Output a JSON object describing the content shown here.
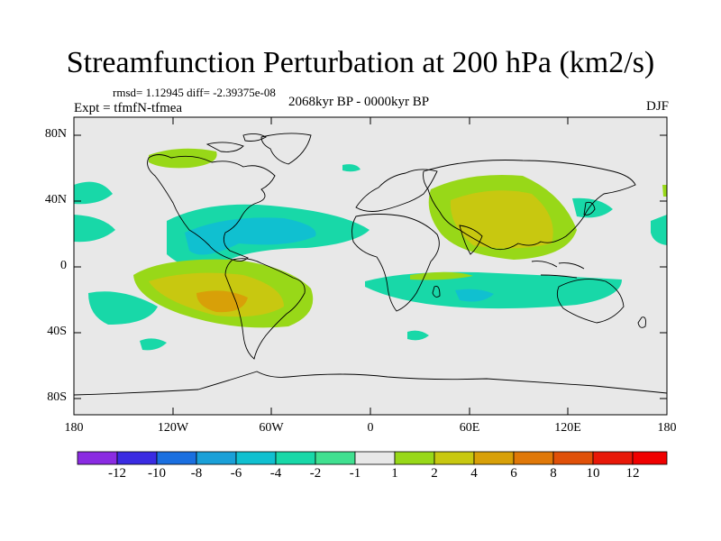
{
  "title": "Streamfunction Perturbation at 200 hPa (km2/s)",
  "stats_line": "rmsd= 1.12945 diff= -2.39375e-08",
  "experiment": "Expt = tfmfN-tfmea",
  "period": "2068kyr BP - 0000kyr BP",
  "season": "DJF",
  "axes": {
    "lat_labels": [
      "80N",
      "40N",
      "0",
      "40S",
      "80S"
    ],
    "lon_labels": [
      "180",
      "120W",
      "60W",
      "0",
      "60E",
      "120E",
      "180"
    ]
  },
  "colorbar": {
    "labels": [
      "-12",
      "-10",
      "-8",
      "-6",
      "-4",
      "-2",
      "-1",
      "1",
      "2",
      "4",
      "6",
      "8",
      "10",
      "12"
    ],
    "colors": [
      "#8a2be2",
      "#3a2be2",
      "#1a6fe0",
      "#1aa0d8",
      "#10c0d0",
      "#18d8a8",
      "#40e090",
      "#e8e8e8",
      "#98d818",
      "#c8c810",
      "#d8a008",
      "#e07808",
      "#e05008",
      "#e81808",
      "#f00000"
    ]
  },
  "colors": {
    "ocean_background": "#e8e8e8",
    "coastline": "#000000"
  }
}
